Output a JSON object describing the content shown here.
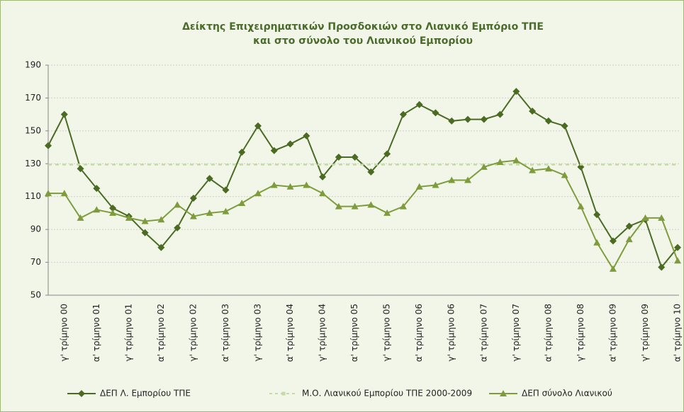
{
  "chart_data": {
    "type": "line",
    "title": "Δείκτης Επιχειρηματικών Προσδοκιών στο Λιανικό Εμπόριο ΤΠΕ",
    "subtitle": "και στο σύνολο του Λιανικού Εμπορίου",
    "categories": [
      null,
      "γ' τρίμηνο 00",
      null,
      "α' τρίμηνο 01",
      null,
      "γ' τρίμηνο 01",
      null,
      "α' τρίμηνο 02",
      null,
      "γ' τρίμηνο 02",
      null,
      "α' τρίμηνο 03",
      null,
      "γ' τρίμηνο 03",
      null,
      "α' τρίμηνο 04",
      null,
      "γ' τρίμηνο 04",
      null,
      "α' τρίμηνο 05",
      null,
      "γ' τρίμηνο 05",
      null,
      "α' τρίμηνο 06",
      null,
      "γ' τρίμηνο 06",
      null,
      "α' τρίμηνο 07",
      null,
      "γ' τρίμηνο 07",
      null,
      "α' τρίμηνο 08",
      null,
      "γ' τρίμηνο 08",
      null,
      "α' τρίμηνο 09",
      null,
      "γ' τρίμηνο 09",
      null,
      "α' τρίμηνο 10"
    ],
    "series": [
      {
        "name": "ΔΕΠ Λ. Εμπορίου ΤΠΕ",
        "color": "#4b6a22",
        "marker": "diamond",
        "values": [
          141,
          160,
          127,
          115,
          103,
          98,
          88,
          79,
          91,
          109,
          121,
          114,
          137,
          153,
          138,
          142,
          147,
          122,
          134,
          134,
          125,
          136,
          160,
          166,
          161,
          156,
          157,
          157,
          160,
          174,
          162,
          156,
          153,
          128,
          99,
          83,
          92,
          96,
          67,
          79
        ]
      },
      {
        "name": "Μ.Ο. Λιανικού Εμπορίου ΤΠΕ 2000-2009",
        "color": "#c4dca4",
        "marker": "square",
        "dashed": true,
        "values": [
          129.5,
          129.5,
          129.5,
          129.5,
          129.5,
          129.5,
          129.5,
          129.5,
          129.5,
          129.5,
          129.5,
          129.5,
          129.5,
          129.5,
          129.5,
          129.5,
          129.5,
          129.5,
          129.5,
          129.5,
          129.5,
          129.5,
          129.5,
          129.5,
          129.5,
          129.5,
          129.5,
          129.5,
          129.5,
          129.5,
          129.5,
          129.5,
          129.5,
          129.5,
          129.5,
          129.5,
          129.5,
          129.5,
          129.5,
          129.5
        ]
      },
      {
        "name": "ΔΕΠ σύνολο Λιανικού",
        "color": "#7f9c3c",
        "marker": "triangle",
        "values": [
          112,
          112,
          97,
          102,
          100,
          97,
          95,
          96,
          105,
          98,
          100,
          101,
          106,
          112,
          117,
          116,
          117,
          112,
          104,
          104,
          105,
          100,
          104,
          116,
          117,
          120,
          120,
          128,
          131,
          132,
          126,
          127,
          123,
          104,
          82,
          66,
          84,
          97,
          97,
          71
        ]
      }
    ],
    "ylim": [
      50,
      190
    ],
    "yticks": [
      50,
      70,
      90,
      110,
      130,
      150,
      170,
      190
    ],
    "grid": true,
    "legend": "bottom"
  }
}
